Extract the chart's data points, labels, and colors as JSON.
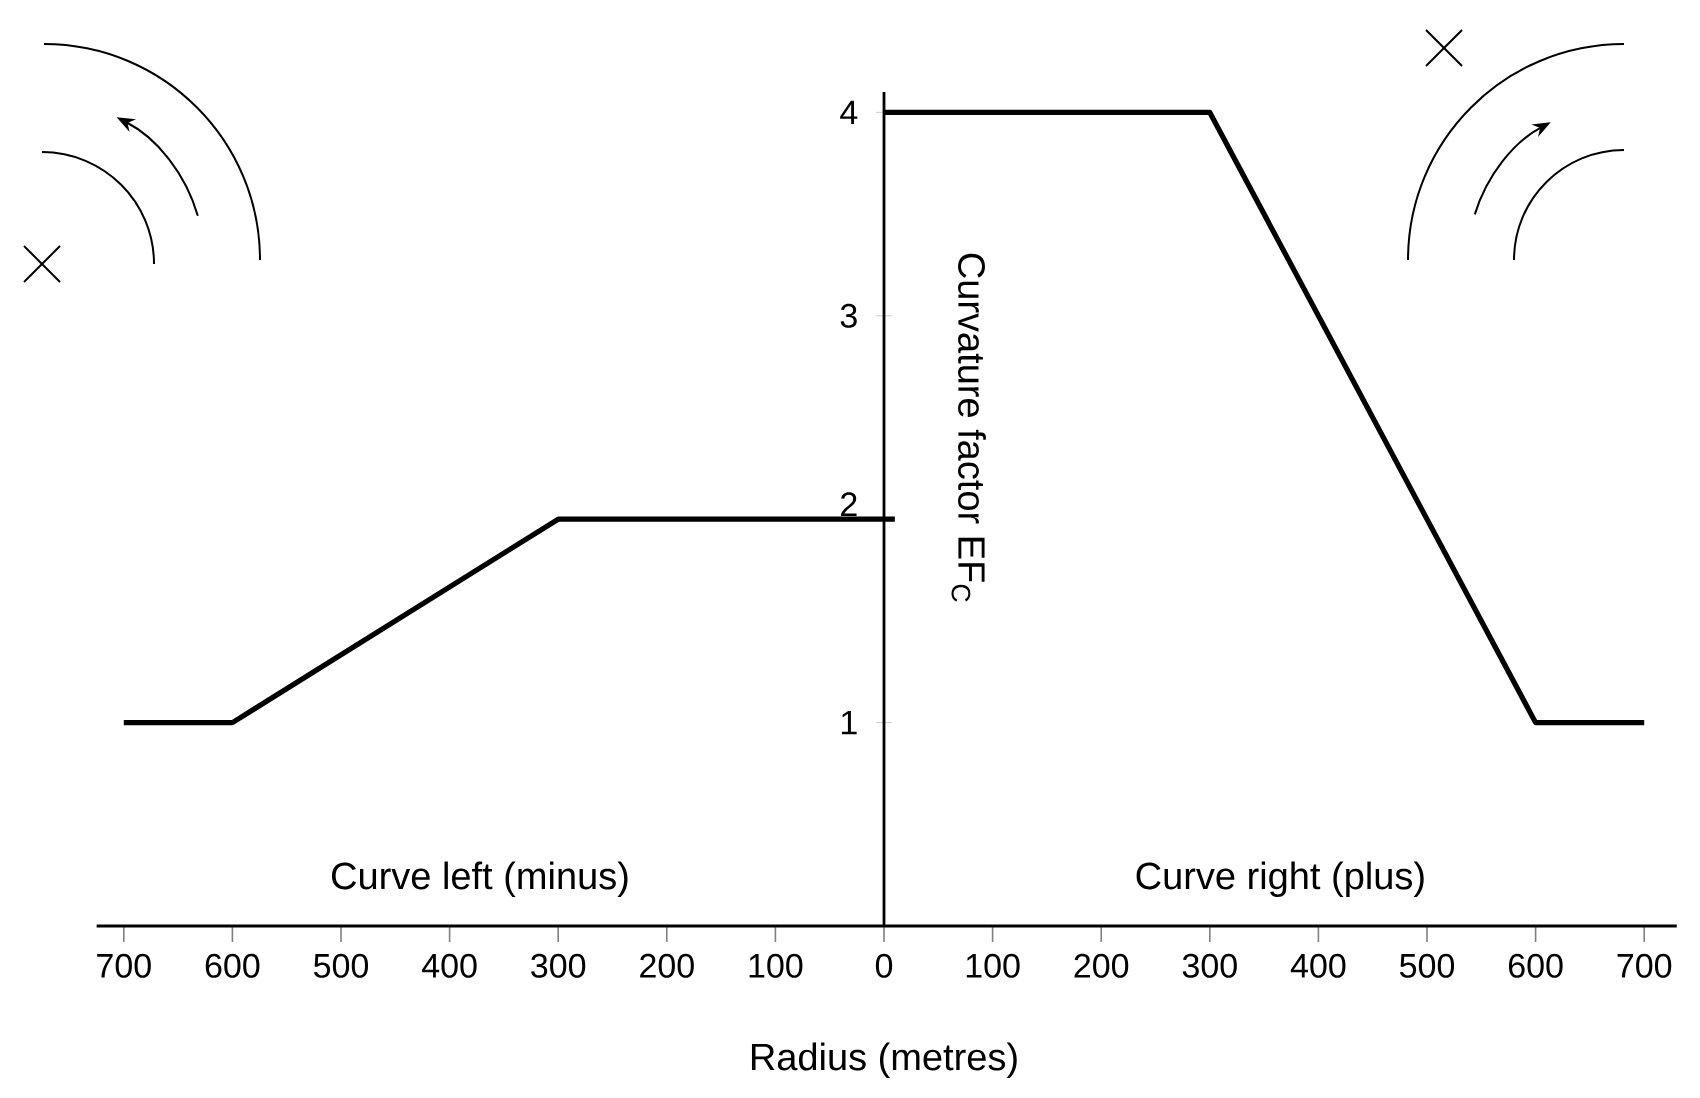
{
  "chart_data": {
    "type": "line",
    "xlabel": "Radius (metres)",
    "ylabel": "Curvature factor EF$_{C}$",
    "annotations": [
      "Curve left (minus)",
      "Curve right (plus)"
    ],
    "xlim": [
      -725,
      730
    ],
    "ylim": [
      0,
      4.1
    ],
    "xticks": [
      {
        "value": -700,
        "label": "700"
      },
      {
        "value": -600,
        "label": "600"
      },
      {
        "value": -500,
        "label": "500"
      },
      {
        "value": -400,
        "label": "400"
      },
      {
        "value": -300,
        "label": "300"
      },
      {
        "value": -200,
        "label": "200"
      },
      {
        "value": -100,
        "label": "100"
      },
      0,
      100,
      200,
      300,
      400,
      500,
      600,
      700
    ],
    "yticks": [
      1,
      2,
      3,
      4
    ],
    "series": [
      {
        "color": "#000000",
        "x": [
          -700,
          -600,
          -300,
          10
        ],
        "values": [
          1,
          1,
          2,
          2
        ]
      },
      {
        "color": "#000000",
        "x": [
          0,
          300,
          600,
          700
        ],
        "values": [
          4,
          4,
          1,
          1
        ]
      }
    ],
    "grid": false,
    "marker": "none",
    "line_style": "solid"
  }
}
